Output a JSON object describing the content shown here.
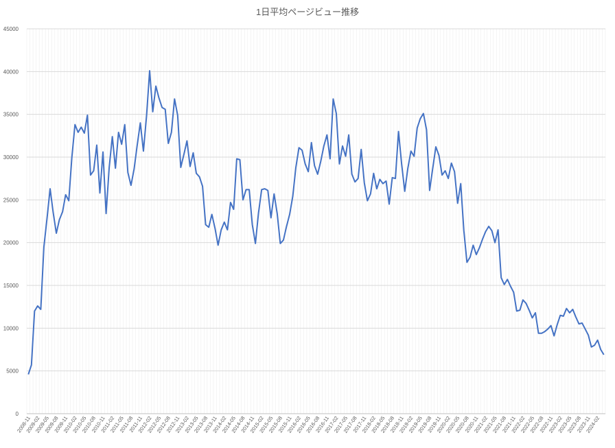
{
  "chart_data": {
    "type": "line",
    "title": "1日平均ページビュー推移",
    "xlabel": "",
    "ylabel": "",
    "ylim": [
      0,
      45000
    ],
    "y_ticks": [
      0,
      5000,
      10000,
      15000,
      20000,
      25000,
      30000,
      35000,
      40000,
      45000
    ],
    "grid": true,
    "line_color": "#4472c4",
    "x_tick_labels": [
      "2008-11",
      "2009-02",
      "2009-05",
      "2009-08",
      "2009-11",
      "2010-02",
      "2010-05",
      "2010-08",
      "2010-11",
      "2011-02",
      "2011-05",
      "2011-08",
      "2011-11",
      "2012-02",
      "2012-05",
      "2012-08",
      "2012-11",
      "2013-02",
      "2013-05",
      "2013-08",
      "2013-11",
      "2014-02",
      "2014-05",
      "2014-08",
      "2014-11",
      "2015-02",
      "2015-05",
      "2015-08",
      "2015-11",
      "2016-02",
      "2016-05",
      "2016-08",
      "2016-11",
      "2017-02",
      "2017-05",
      "2017-08",
      "2017-11",
      "2018-02",
      "2018-05",
      "2018-08",
      "2018-11",
      "2019-02",
      "2019-05",
      "2019-08",
      "2019-11",
      "2020-02",
      "2020-05",
      "2020-08",
      "2020-11",
      "2021-02",
      "2021-05",
      "2021-08",
      "2021-11",
      "2022-02",
      "2022-05",
      "2022-08",
      "2022-11",
      "2023-02",
      "2023-05",
      "2023-08",
      "2023-11",
      "2024-02"
    ],
    "series": [
      {
        "values": [
          4600,
          5700,
          12000,
          12600,
          12200,
          19500,
          22800,
          26300,
          23500,
          21100,
          22700,
          23600,
          25600,
          24900,
          30000,
          33800,
          32900,
          33500,
          32800,
          34900,
          27900,
          28400,
          31400,
          25800,
          30600,
          23400,
          28800,
          32400,
          28700,
          32900,
          31500,
          33800,
          28200,
          26700,
          28600,
          31400,
          34000,
          30700,
          34800,
          40100,
          35300,
          38300,
          36900,
          35800,
          35600,
          31600,
          32900,
          36800,
          34900,
          28800,
          30300,
          31900,
          28900,
          30500,
          28100,
          27700,
          26600,
          22100,
          21800,
          23300,
          21700,
          19700,
          21500,
          22400,
          21500,
          24700,
          23900,
          29800,
          29700,
          25000,
          26200,
          26200,
          22100,
          19900,
          23500,
          26200,
          26300,
          26100,
          22900,
          25700,
          23400,
          19900,
          20300,
          21900,
          23300,
          25400,
          28800,
          31100,
          30800,
          29200,
          28300,
          31700,
          29000,
          28000,
          29500,
          31300,
          32600,
          29800,
          36800,
          35100,
          29200,
          31300,
          30100,
          32600,
          28000,
          27100,
          27500,
          30900,
          27000,
          24900,
          25700,
          28100,
          26300,
          27400,
          26900,
          27200,
          24500,
          27600,
          27500,
          33000,
          29200,
          26000,
          28700,
          30700,
          30100,
          33400,
          34500,
          35100,
          33200,
          26100,
          28700,
          31200,
          30200,
          27900,
          28400,
          27500,
          29300,
          28300,
          24600,
          26900,
          21400,
          17700,
          18300,
          19700,
          18600,
          19400,
          20400,
          21300,
          21900,
          21400,
          20000,
          21500,
          15900,
          15100,
          15700,
          14900,
          14200,
          12000,
          12100,
          13300,
          12900,
          12100,
          11200,
          11800,
          9400,
          9400,
          9600,
          9900,
          10300,
          9100,
          10400,
          11500,
          11400,
          12300,
          11800,
          12200,
          11300,
          10500,
          10600,
          9900,
          9200,
          7800,
          8000,
          8600,
          7500,
          6900
        ]
      }
    ]
  }
}
